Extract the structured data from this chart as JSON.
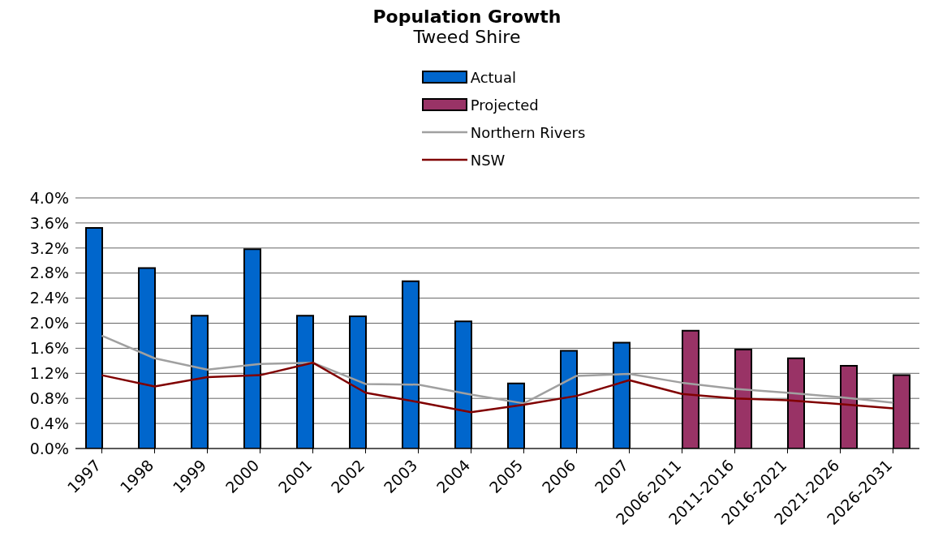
{
  "chart_data": {
    "type": "bar",
    "title": "Population Growth",
    "subtitle": "Tweed Shire",
    "categories": [
      "1997",
      "1998",
      "1999",
      "2000",
      "2001",
      "2002",
      "2003",
      "2004",
      "2005",
      "2006",
      "2007",
      "2006-2011",
      "2011-2016",
      "2016-2021",
      "2021-2026",
      "2026-2031"
    ],
    "series": [
      {
        "name": "Actual",
        "color": "#0066cc",
        "values": [
          3.52,
          2.88,
          2.12,
          3.18,
          2.12,
          2.11,
          2.67,
          2.03,
          1.04,
          1.56,
          1.69,
          null,
          null,
          null,
          null,
          null
        ]
      },
      {
        "name": "Projected",
        "color": "#993366",
        "values": [
          null,
          null,
          null,
          null,
          null,
          null,
          null,
          null,
          null,
          null,
          null,
          1.88,
          1.58,
          1.44,
          1.32,
          1.17
        ]
      },
      {
        "name": "Northern Rivers",
        "type": "line",
        "color": "#a0a0a0",
        "values": [
          1.8,
          1.44,
          1.26,
          1.35,
          1.37,
          1.03,
          1.02,
          0.86,
          0.72,
          1.16,
          1.19,
          1.05,
          0.95,
          0.89,
          0.82,
          0.73
        ]
      },
      {
        "name": "NSW",
        "type": "line",
        "color": "#800000",
        "values": [
          1.17,
          0.99,
          1.14,
          1.17,
          1.37,
          0.89,
          0.74,
          0.58,
          0.7,
          0.84,
          1.09,
          0.87,
          0.8,
          0.77,
          0.71,
          0.64
        ]
      }
    ],
    "ylim": [
      0,
      4
    ],
    "yticks": [
      {
        "value": 0,
        "label": "0.0%"
      },
      {
        "value": 0.4,
        "label": "0.4%"
      },
      {
        "value": 0.8,
        "label": "0.8%"
      },
      {
        "value": 1.2,
        "label": "1.2%"
      },
      {
        "value": 1.6,
        "label": "1.6%"
      },
      {
        "value": 2.0,
        "label": "2.0%"
      },
      {
        "value": 2.4,
        "label": "2.4%"
      },
      {
        "value": 2.8,
        "label": "2.8%"
      },
      {
        "value": 3.2,
        "label": "3.2%"
      },
      {
        "value": 3.6,
        "label": "3.6%"
      },
      {
        "value": 4.0,
        "label": "4.0%"
      }
    ],
    "grid": "y",
    "legend": "top",
    "marker": "none",
    "line_style": "solid"
  }
}
